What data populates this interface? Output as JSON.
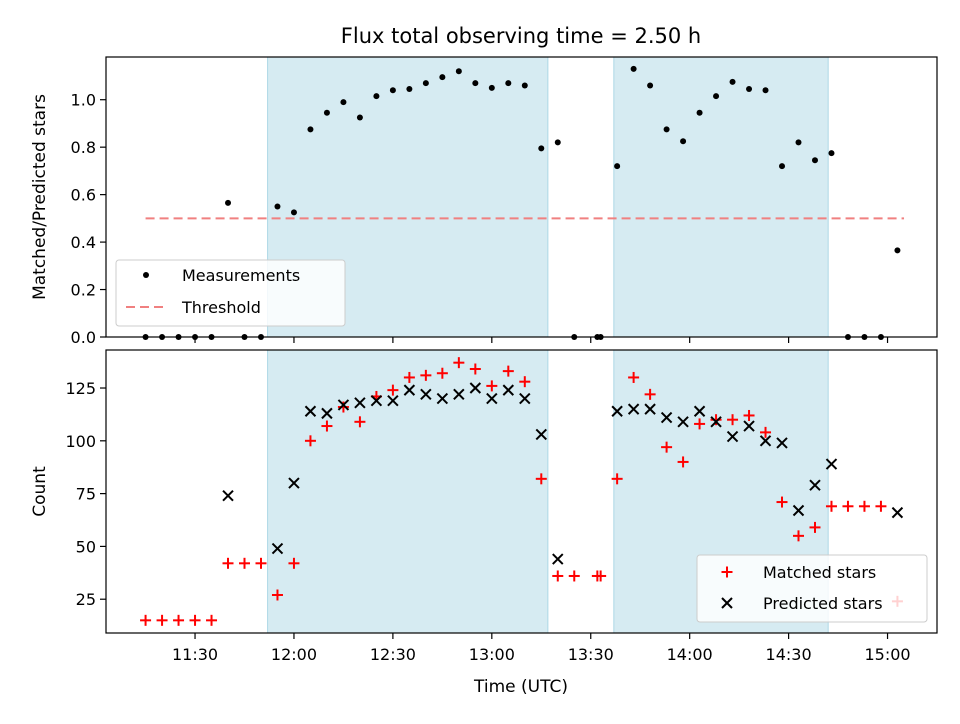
{
  "chart_data": {
    "type": "scatter",
    "title": "Flux total observing time = 2.50 h",
    "xlabel": "Time (UTC)",
    "x_ticks": [
      "11:30",
      "12:00",
      "12:30",
      "13:00",
      "13:30",
      "14:00",
      "14:30",
      "15:00"
    ],
    "xlim": [
      "11:03",
      "15:15"
    ],
    "shaded_intervals": [
      [
        "11:52",
        "13:17"
      ],
      [
        "13:37",
        "14:42"
      ]
    ],
    "shade_color": "#add8e6",
    "panels": [
      {
        "id": "ratio",
        "ylabel": "Matched/Predicted stars",
        "ylim": [
          0,
          1.18
        ],
        "y_ticks": [
          "0.0",
          "0.2",
          "0.4",
          "0.6",
          "0.8",
          "1.0"
        ],
        "threshold": {
          "name": "Threshold",
          "value": 0.5,
          "x_range": [
            "11:15",
            "15:05"
          ],
          "color": "#f08080"
        },
        "legend": {
          "position": "lower-left"
        },
        "series": [
          {
            "name": "Measurements",
            "marker": "dot",
            "color": "#000000",
            "points": [
              [
                "11:15",
                0.0
              ],
              [
                "11:20",
                0.0
              ],
              [
                "11:25",
                0.0
              ],
              [
                "11:30",
                0.0
              ],
              [
                "11:35",
                0.0
              ],
              [
                "11:40",
                0.565
              ],
              [
                "11:45",
                0.0
              ],
              [
                "11:50",
                0.0
              ],
              [
                "11:55",
                0.55
              ],
              [
                "12:00",
                0.525
              ],
              [
                "12:05",
                0.875
              ],
              [
                "12:10",
                0.945
              ],
              [
                "12:15",
                0.99
              ],
              [
                "12:20",
                0.925
              ],
              [
                "12:25",
                1.015
              ],
              [
                "12:30",
                1.04
              ],
              [
                "12:35",
                1.045
              ],
              [
                "12:40",
                1.07
              ],
              [
                "12:45",
                1.095
              ],
              [
                "12:50",
                1.12
              ],
              [
                "12:55",
                1.07
              ],
              [
                "13:00",
                1.05
              ],
              [
                "13:05",
                1.07
              ],
              [
                "13:10",
                1.06
              ],
              [
                "13:15",
                0.795
              ],
              [
                "13:20",
                0.82
              ],
              [
                "13:25",
                0.0
              ],
              [
                "13:32",
                0.0
              ],
              [
                "13:33",
                0.0
              ],
              [
                "13:38",
                0.72
              ],
              [
                "13:43",
                1.13
              ],
              [
                "13:48",
                1.06
              ],
              [
                "13:53",
                0.875
              ],
              [
                "13:58",
                0.825
              ],
              [
                "14:03",
                0.945
              ],
              [
                "14:08",
                1.015
              ],
              [
                "14:13",
                1.075
              ],
              [
                "14:18",
                1.045
              ],
              [
                "14:23",
                1.04
              ],
              [
                "14:28",
                0.72
              ],
              [
                "14:33",
                0.82
              ],
              [
                "14:38",
                0.745
              ],
              [
                "14:43",
                0.775
              ],
              [
                "14:48",
                0.0
              ],
              [
                "14:53",
                0.0
              ],
              [
                "14:58",
                0.0
              ],
              [
                "15:03",
                0.365
              ]
            ]
          }
        ]
      },
      {
        "id": "count",
        "ylabel": "Count",
        "ylim": [
          9,
          143
        ],
        "y_ticks": [
          "25",
          "50",
          "75",
          "100",
          "125"
        ],
        "legend": {
          "position": "lower-right"
        },
        "series": [
          {
            "name": "Matched stars",
            "marker": "plus",
            "color": "#ff0000",
            "points": [
              [
                "11:15",
                15
              ],
              [
                "11:20",
                15
              ],
              [
                "11:25",
                15
              ],
              [
                "11:30",
                15
              ],
              [
                "11:35",
                15
              ],
              [
                "11:40",
                42
              ],
              [
                "11:45",
                42
              ],
              [
                "11:50",
                42
              ],
              [
                "11:55",
                27
              ],
              [
                "12:00",
                42
              ],
              [
                "12:05",
                100
              ],
              [
                "12:10",
                107
              ],
              [
                "12:15",
                116
              ],
              [
                "12:20",
                109
              ],
              [
                "12:25",
                121
              ],
              [
                "12:30",
                124
              ],
              [
                "12:35",
                130
              ],
              [
                "12:40",
                131
              ],
              [
                "12:45",
                132
              ],
              [
                "12:50",
                137
              ],
              [
                "12:55",
                134
              ],
              [
                "13:00",
                126
              ],
              [
                "13:05",
                133
              ],
              [
                "13:10",
                128
              ],
              [
                "13:15",
                82
              ],
              [
                "13:20",
                36
              ],
              [
                "13:25",
                36
              ],
              [
                "13:32",
                36
              ],
              [
                "13:33",
                36
              ],
              [
                "13:38",
                82
              ],
              [
                "13:43",
                130
              ],
              [
                "13:48",
                122
              ],
              [
                "13:53",
                97
              ],
              [
                "13:58",
                90
              ],
              [
                "14:03",
                108
              ],
              [
                "14:08",
                110
              ],
              [
                "14:13",
                110
              ],
              [
                "14:18",
                112
              ],
              [
                "14:23",
                104
              ],
              [
                "14:28",
                71
              ],
              [
                "14:33",
                55
              ],
              [
                "14:38",
                59
              ],
              [
                "14:43",
                69
              ],
              [
                "14:48",
                69
              ],
              [
                "14:53",
                69
              ],
              [
                "14:58",
                69
              ],
              [
                "15:03",
                24
              ]
            ]
          },
          {
            "name": "Predicted stars",
            "marker": "x",
            "color": "#000000",
            "points": [
              [
                "11:40",
                74
              ],
              [
                "11:55",
                49
              ],
              [
                "12:00",
                80
              ],
              [
                "12:05",
                114
              ],
              [
                "12:10",
                113
              ],
              [
                "12:15",
                117
              ],
              [
                "12:20",
                118
              ],
              [
                "12:25",
                119
              ],
              [
                "12:30",
                119
              ],
              [
                "12:35",
                124
              ],
              [
                "12:40",
                122
              ],
              [
                "12:45",
                120
              ],
              [
                "12:50",
                122
              ],
              [
                "12:55",
                125
              ],
              [
                "13:00",
                120
              ],
              [
                "13:05",
                124
              ],
              [
                "13:10",
                120
              ],
              [
                "13:15",
                103
              ],
              [
                "13:20",
                44
              ],
              [
                "13:38",
                114
              ],
              [
                "13:43",
                115
              ],
              [
                "13:48",
                115
              ],
              [
                "13:53",
                111
              ],
              [
                "13:58",
                109
              ],
              [
                "14:03",
                114
              ],
              [
                "14:08",
                109
              ],
              [
                "14:13",
                102
              ],
              [
                "14:18",
                107
              ],
              [
                "14:23",
                100
              ],
              [
                "14:28",
                99
              ],
              [
                "14:33",
                67
              ],
              [
                "14:38",
                79
              ],
              [
                "14:43",
                89
              ],
              [
                "15:03",
                66
              ]
            ]
          }
        ]
      }
    ]
  }
}
